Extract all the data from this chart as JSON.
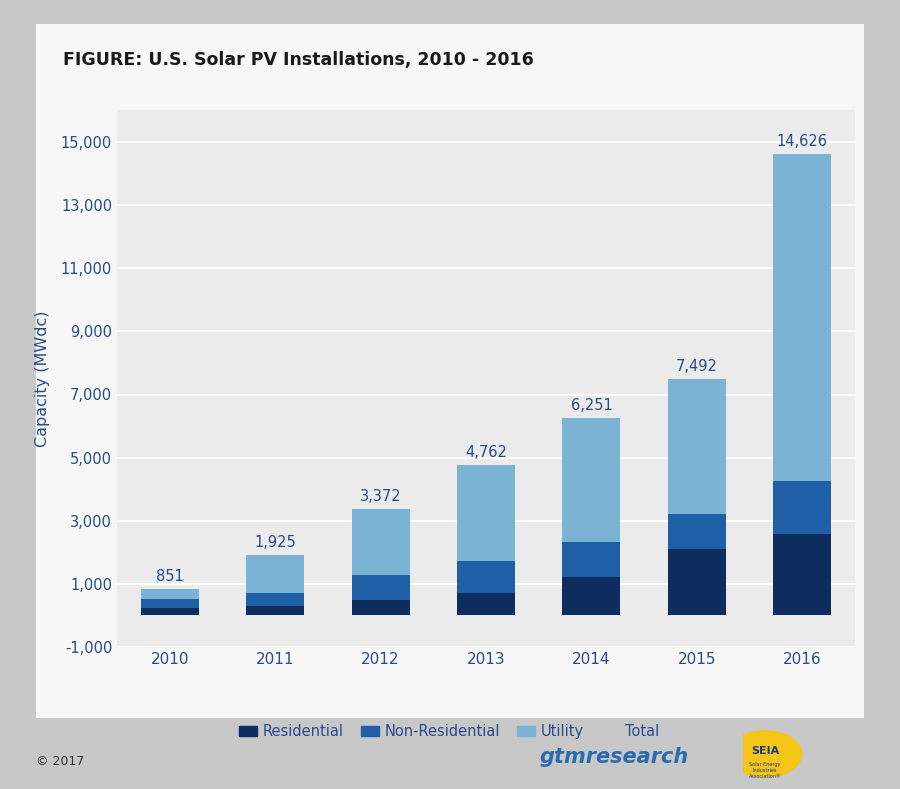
{
  "title": "FIGURE: U.S. Solar PV Installations, 2010 - 2016",
  "ylabel": "Capacity (MWdc)",
  "years": [
    "2010",
    "2011",
    "2012",
    "2013",
    "2014",
    "2015",
    "2016"
  ],
  "residential": [
    239,
    314,
    485,
    723,
    1213,
    2094,
    2583
  ],
  "non_residential": [
    285,
    402,
    784,
    1003,
    1121,
    1105,
    1665
  ],
  "utility": [
    327,
    1209,
    2103,
    3036,
    3917,
    4293,
    10378
  ],
  "totals": [
    851,
    1925,
    3372,
    4762,
    6251,
    7492,
    14626
  ],
  "color_residential": "#0d2d5e",
  "color_non_residential": "#1f5fa6",
  "color_utility": "#7ab3d4",
  "ylim_min": -1000,
  "ylim_max": 16000,
  "yticks": [
    -1000,
    1000,
    3000,
    5000,
    7000,
    9000,
    11000,
    13000,
    15000
  ],
  "ytick_labels": [
    "-1,000",
    "1,000",
    "3,000",
    "5,000",
    "7,000",
    "9,000",
    "11,000",
    "13,000",
    "15,000"
  ],
  "plot_bg_color": "#ebebeb",
  "card_bg_color": "#f7f7f7",
  "outer_background": "#c8c8c8",
  "text_color": "#2b4a8a",
  "axis_label_color": "#2b4a8a",
  "title_color": "#1a1a1a",
  "grid_color": "#ffffff",
  "legend_labels": [
    "Residential",
    "Non-Residential",
    "Utility",
    "Total"
  ],
  "footer_left": "© 2017",
  "footer_gtm": "gtmresearch",
  "footer_seia": "SEIA",
  "bar_width": 0.55
}
